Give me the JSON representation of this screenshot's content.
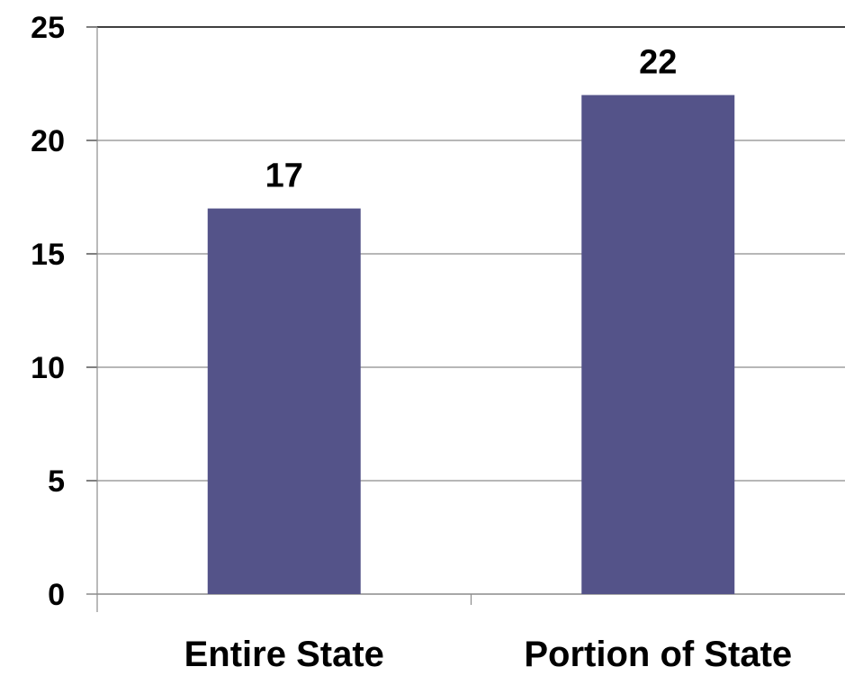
{
  "chart_data": {
    "type": "bar",
    "categories": [
      "Entire State",
      "Portion of State"
    ],
    "values": [
      17,
      22
    ],
    "data_labels": [
      "17",
      "22"
    ],
    "y_ticks": [
      "0",
      "5",
      "10",
      "15",
      "20",
      "25"
    ],
    "ylim": [
      0,
      25
    ],
    "grid": true,
    "legend": "none",
    "colors": {
      "bar": "#545389",
      "grid": "#8c8c8c",
      "axis": "#000000"
    }
  }
}
